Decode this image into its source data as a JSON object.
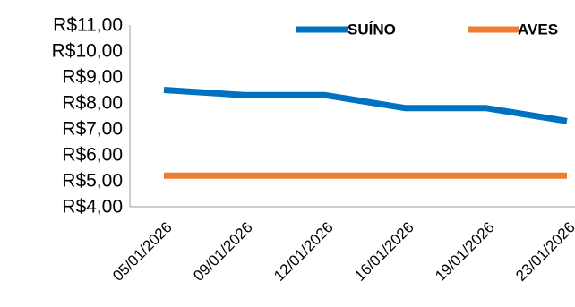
{
  "chart_data": {
    "type": "line",
    "title": "",
    "xlabel": "",
    "ylabel": "",
    "categories": [
      "05/01/2026",
      "09/01/2026",
      "12/01/2026",
      "16/01/2026",
      "19/01/2026",
      "23/01/2026"
    ],
    "series": [
      {
        "name": "SUÍNO",
        "values": [
          8.5,
          8.3,
          8.3,
          7.8,
          7.8,
          7.3
        ],
        "color": "#0070C0"
      },
      {
        "name": "AVES",
        "values": [
          5.2,
          5.2,
          5.2,
          5.2,
          5.2,
          5.2
        ],
        "color": "#ED7D31"
      }
    ],
    "ylim": [
      4,
      11
    ],
    "y_ticks": [
      {
        "value": 11,
        "label": "R$11,00"
      },
      {
        "value": 10,
        "label": "R$10,00"
      },
      {
        "value": 9,
        "label": "R$9,00"
      },
      {
        "value": 8,
        "label": "R$8,00"
      },
      {
        "value": 7,
        "label": "R$7,00"
      },
      {
        "value": 6,
        "label": "R$6,00"
      },
      {
        "value": 5,
        "label": "R$5,00"
      },
      {
        "value": 4,
        "label": "R$4,00"
      }
    ],
    "grid": false,
    "legend_position": "top-right"
  }
}
